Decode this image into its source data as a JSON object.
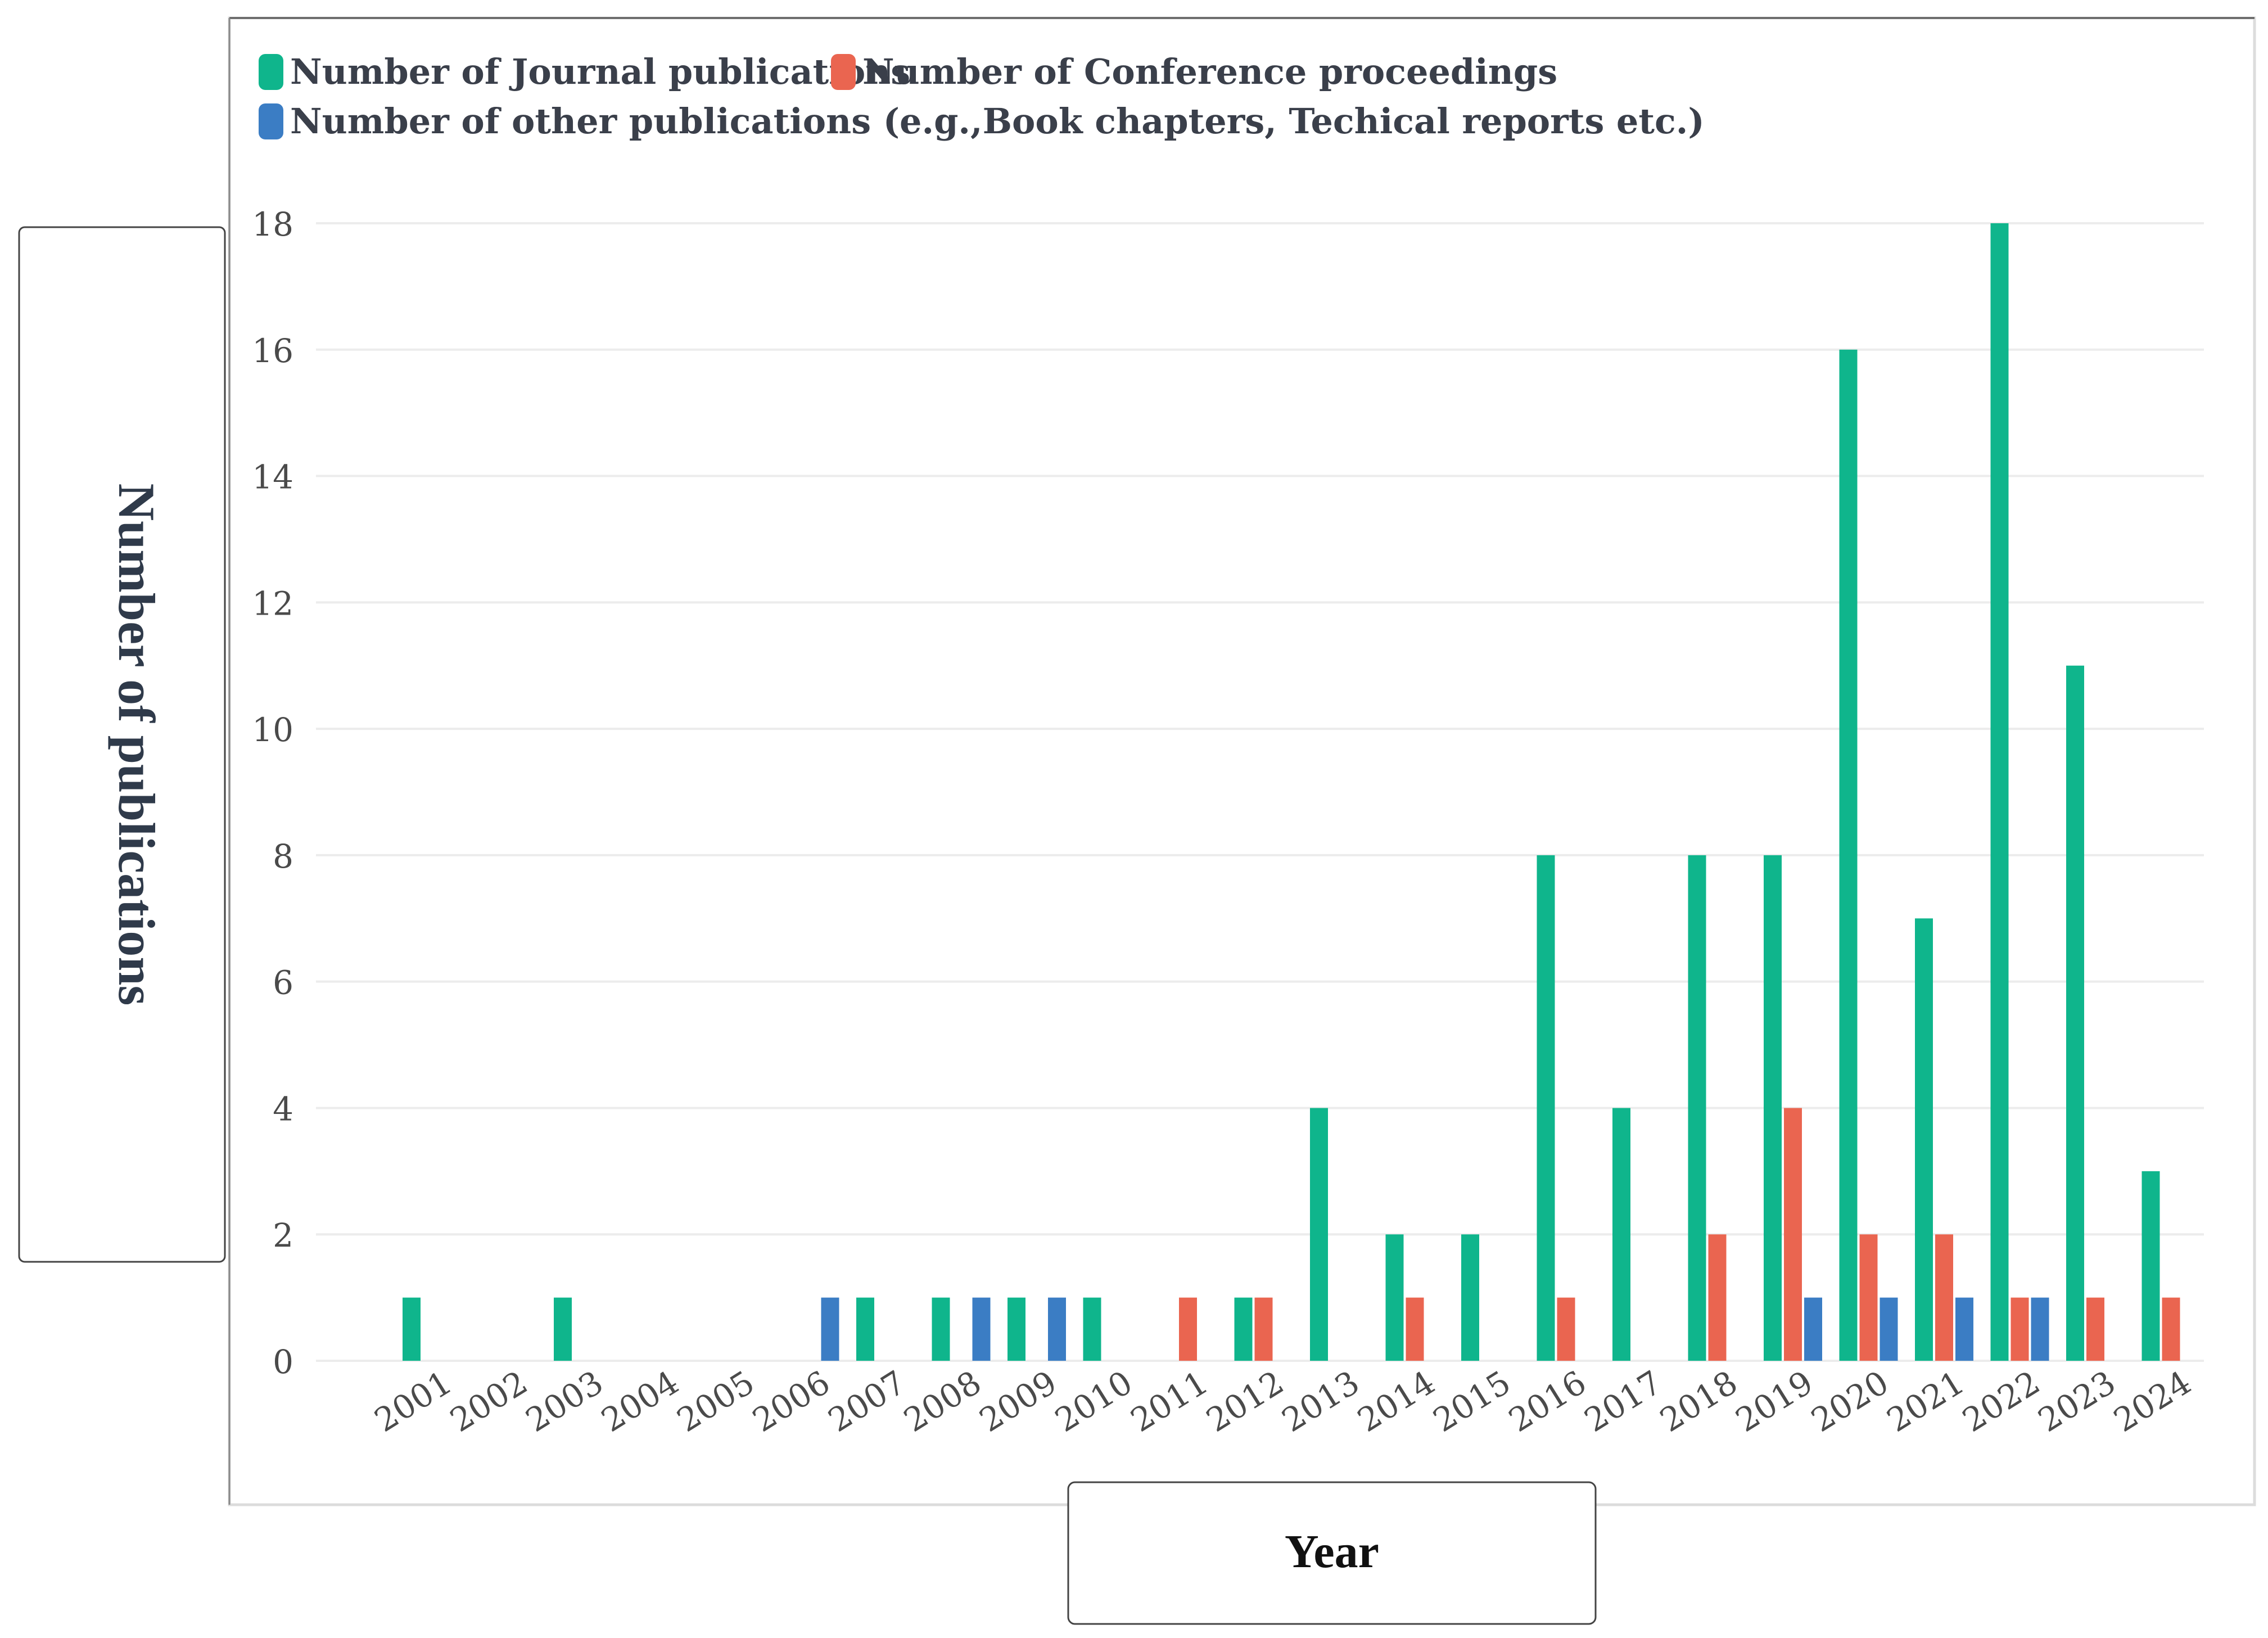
{
  "chart_data": {
    "type": "bar",
    "categories": [
      "2001",
      "2002",
      "2003",
      "2004",
      "2005",
      "2006",
      "2007",
      "2008",
      "2009",
      "2010",
      "2011",
      "2012",
      "2013",
      "2014",
      "2015",
      "2016",
      "2017",
      "2018",
      "2019",
      "2020",
      "2021",
      "2022",
      "2023",
      "2024"
    ],
    "series": [
      {
        "name": "Number of Journal publications",
        "color": "#0fb58c",
        "values": [
          1,
          0,
          1,
          0,
          0,
          0,
          1,
          1,
          1,
          1,
          0,
          1,
          4,
          2,
          2,
          8,
          4,
          8,
          8,
          16,
          7,
          18,
          11,
          3
        ]
      },
      {
        "name": "Number of Conference proceedings",
        "color": "#ea6550",
        "values": [
          0,
          0,
          0,
          0,
          0,
          0,
          0,
          0,
          0,
          0,
          1,
          1,
          0,
          1,
          0,
          1,
          0,
          2,
          4,
          2,
          2,
          1,
          1,
          1
        ]
      },
      {
        "name": "Number of other publications (e.g.,Book chapters, Techical reports etc.)",
        "color": "#3b7dc4",
        "values": [
          0,
          0,
          0,
          0,
          0,
          1,
          0,
          1,
          1,
          0,
          0,
          0,
          0,
          0,
          0,
          0,
          0,
          0,
          1,
          1,
          1,
          1,
          0,
          0
        ]
      }
    ],
    "ylim": [
      0,
      18
    ],
    "yticks": [
      0,
      2,
      4,
      6,
      8,
      10,
      12,
      14,
      16,
      18
    ],
    "xlabel": "Year",
    "ylabel": "Number of publications",
    "grid": true,
    "legend_position": "top-left"
  }
}
